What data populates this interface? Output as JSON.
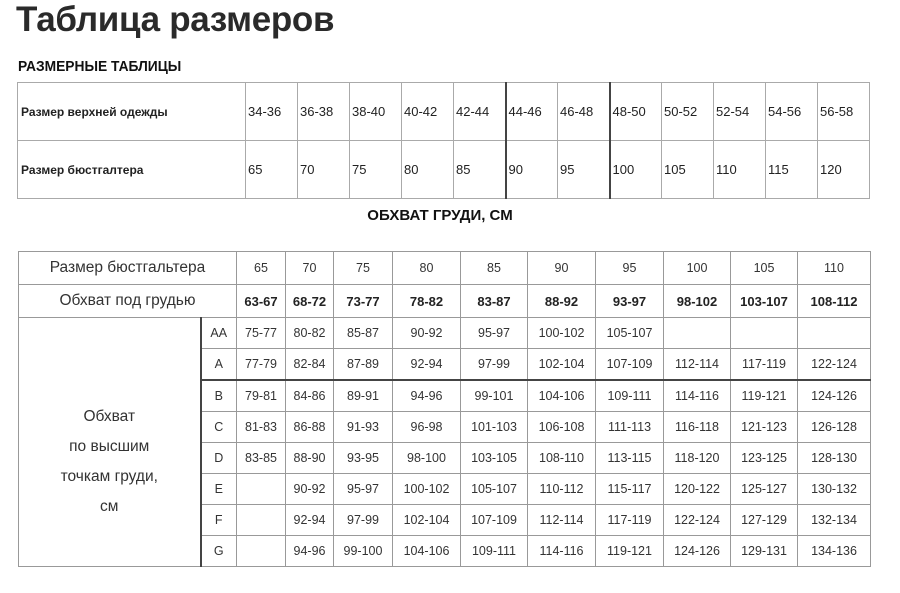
{
  "title": "Таблица размеров",
  "subtitle": "РАЗМЕРНЫЕ ТАБЛИЦЫ",
  "size_table": {
    "rows": [
      {
        "label": "Размер верхней одежды",
        "values": [
          "34-36",
          "36-38",
          "38-40",
          "40-42",
          "42-44",
          "44-46",
          "46-48",
          "48-50",
          "50-52",
          "52-54",
          "54-56",
          "56-58"
        ]
      },
      {
        "label": "Размер бюстгалтера",
        "values": [
          "65",
          "70",
          "75",
          "80",
          "85",
          "90",
          "95",
          "100",
          "105",
          "110",
          "115",
          "120"
        ]
      }
    ]
  },
  "section_heading": "ОБХВАТ ГРУДИ, СМ",
  "bust_table": {
    "bra_size_label": "Размер бюстгальтера",
    "bra_sizes": [
      "65",
      "70",
      "75",
      "80",
      "85",
      "90",
      "95",
      "100",
      "105",
      "110"
    ],
    "underbust_label": "Обхват под грудью",
    "underbust": [
      "63-67",
      "68-72",
      "73-77",
      "78-82",
      "83-87",
      "88-92",
      "93-97",
      "98-102",
      "103-107",
      "108-112"
    ],
    "bust_label_lines": [
      "Обхват",
      "по высшим",
      "точкам груди,",
      "см"
    ],
    "cups": [
      {
        "cup": "AA",
        "values": [
          "75-77",
          "80-82",
          "85-87",
          "90-92",
          "95-97",
          "100-102",
          "105-107",
          "",
          "",
          ""
        ]
      },
      {
        "cup": "A",
        "values": [
          "77-79",
          "82-84",
          "87-89",
          "92-94",
          "97-99",
          "102-104",
          "107-109",
          "112-114",
          "117-119",
          "122-124"
        ]
      },
      {
        "cup": "B",
        "values": [
          "79-81",
          "84-86",
          "89-91",
          "94-96",
          "99-101",
          "104-106",
          "109-111",
          "114-116",
          "119-121",
          "124-126"
        ]
      },
      {
        "cup": "C",
        "values": [
          "81-83",
          "86-88",
          "91-93",
          "96-98",
          "101-103",
          "106-108",
          "111-113",
          "116-118",
          "121-123",
          "126-128"
        ]
      },
      {
        "cup": "D",
        "values": [
          "83-85",
          "88-90",
          "93-95",
          "98-100",
          "103-105",
          "108-110",
          "113-115",
          "118-120",
          "123-125",
          "128-130"
        ]
      },
      {
        "cup": "E",
        "values": [
          "",
          "90-92",
          "95-97",
          "100-102",
          "105-107",
          "110-112",
          "115-117",
          "120-122",
          "125-127",
          "130-132"
        ]
      },
      {
        "cup": "F",
        "values": [
          "",
          "92-94",
          "97-99",
          "102-104",
          "107-109",
          "112-114",
          "117-119",
          "122-124",
          "127-129",
          "132-134"
        ]
      },
      {
        "cup": "G",
        "values": [
          "",
          "94-96",
          "99-100",
          "104-106",
          "109-111",
          "114-116",
          "119-121",
          "124-126",
          "129-131",
          "134-136"
        ]
      }
    ]
  }
}
